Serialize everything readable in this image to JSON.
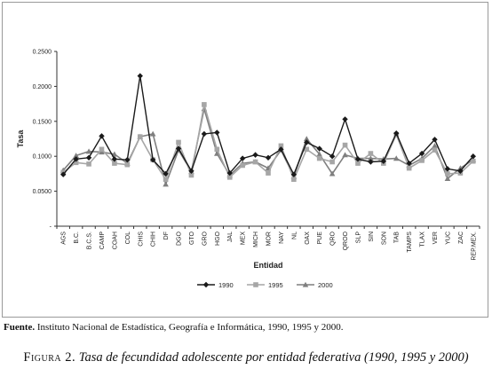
{
  "chart_data": {
    "type": "line",
    "title": "",
    "xlabel": "Entidad",
    "ylabel": "Tasa",
    "ylim": [
      0.0,
      0.25
    ],
    "yticks": [
      "-",
      "0.0500",
      "0.1000",
      "0.1500",
      "0.2000",
      "0.2500"
    ],
    "ytick_values": [
      0.0,
      0.05,
      0.1,
      0.15,
      0.2,
      0.25
    ],
    "grid": false,
    "legend_position": "bottom",
    "categories": [
      "AGS",
      "B.C.",
      "B.C.S.",
      "CAMP",
      "COAH",
      "COL",
      "CHIS",
      "CHIH",
      "DF",
      "DGO",
      "GTO",
      "GRO",
      "HGO",
      "JAL",
      "MEX",
      "MICH",
      "MOR",
      "NAY",
      "NL",
      "OAX",
      "PUE",
      "QRO",
      "QROO",
      "SLP",
      "SIN",
      "SON",
      "TAB",
      "TAMPS",
      "TLAX",
      "VER",
      "YUC",
      "ZAC",
      "REP.MEX."
    ],
    "series": [
      {
        "name": "1990",
        "color": "#1a1a1a",
        "marker": "diamond",
        "values": [
          0.074,
          0.096,
          0.098,
          0.129,
          0.096,
          0.095,
          0.215,
          0.095,
          0.075,
          0.111,
          0.079,
          0.132,
          0.134,
          0.076,
          0.097,
          0.102,
          0.098,
          0.11,
          0.074,
          0.12,
          0.111,
          0.1,
          0.153,
          0.096,
          0.092,
          0.093,
          0.133,
          0.09,
          0.104,
          0.124,
          0.082,
          0.079,
          0.1
        ]
      },
      {
        "name": "1995",
        "color": "#a6a6a6",
        "marker": "square",
        "values": [
          0.077,
          0.091,
          0.089,
          0.11,
          0.09,
          0.088,
          0.128,
          0.095,
          0.067,
          0.12,
          0.073,
          0.174,
          0.11,
          0.07,
          0.087,
          0.092,
          0.076,
          0.115,
          0.067,
          0.11,
          0.097,
          0.092,
          0.116,
          0.09,
          0.104,
          0.09,
          0.131,
          0.083,
          0.094,
          0.109,
          0.075,
          0.076,
          0.093
        ]
      },
      {
        "name": "2000",
        "color": "#7f7f7f",
        "marker": "triangle",
        "values": [
          0.08,
          0.101,
          0.107,
          0.106,
          0.103,
          0.09,
          0.128,
          0.132,
          0.06,
          0.109,
          0.078,
          0.168,
          0.104,
          0.073,
          0.09,
          0.092,
          0.083,
          0.109,
          0.071,
          0.125,
          0.103,
          0.075,
          0.102,
          0.097,
          0.097,
          0.096,
          0.097,
          0.087,
          0.097,
          0.115,
          0.068,
          0.083,
          0.095
        ]
      }
    ]
  },
  "source_note": {
    "label": "Fuente.",
    "text": "Instituto Nacional de Estadística, Geografía e Informática, 1990, 1995 y 2000."
  },
  "caption": {
    "label": "Figura 2.",
    "title": "Tasa de fecundidad adolescente por entidad federativa (1990, 1995 y 2000)"
  }
}
